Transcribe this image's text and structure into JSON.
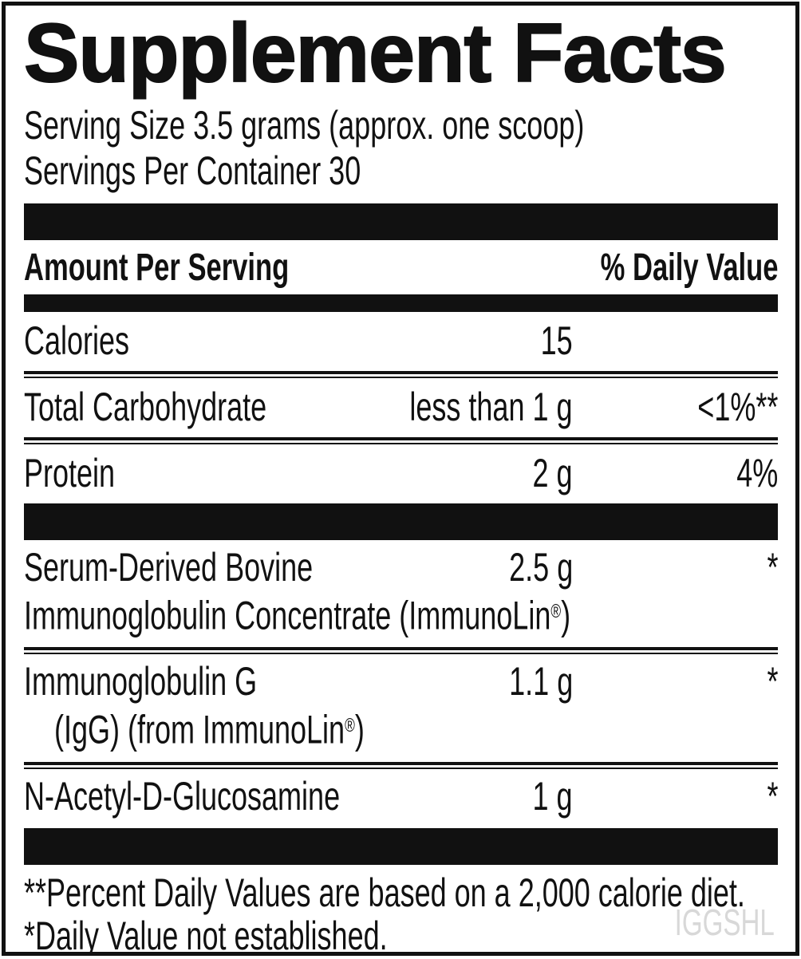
{
  "title": "Supplement Facts",
  "serving_info": {
    "serving_size": "Serving Size 3.5 grams (approx. one scoop)",
    "servings_per_container": "Servings Per Container 30"
  },
  "table_header": {
    "amount_label": "Amount Per Serving",
    "daily_value_label": "% Daily Value"
  },
  "nutrient_rows": [
    {
      "name": "Calories",
      "amount": "15",
      "daily_value": ""
    },
    {
      "name": "Total Carbohydrate",
      "amount": "less than 1 g",
      "daily_value": "<1%**"
    },
    {
      "name": "Protein",
      "amount": "2 g",
      "daily_value": "4%"
    }
  ],
  "ingredient_rows": [
    {
      "name": "Serum-Derived Bovine",
      "line2_pre": "Immunoglobulin Concentrate (ImmunoLin",
      "line2_sup": "®",
      "line2_post": ")",
      "amount": "2.5 g",
      "daily_value": "*"
    },
    {
      "name": "Immunoglobulin G",
      "line2_pre": "(IgG) (from ImmunoLin",
      "line2_sup": "®",
      "line2_post": ")",
      "amount": "1.1 g",
      "daily_value": "*"
    },
    {
      "name": "N-Acetyl-D-Glucosamine",
      "amount": "1 g",
      "daily_value": "*"
    }
  ],
  "footnotes": {
    "percent_daily_value": "**Percent Daily Values are based on a 2,000 calorie diet.",
    "not_established": "*Daily Value not established."
  },
  "watermark": "IGGSHL",
  "colors": {
    "ink": "#111111",
    "background": "#ffffff",
    "watermark": "#d8d8d8"
  }
}
